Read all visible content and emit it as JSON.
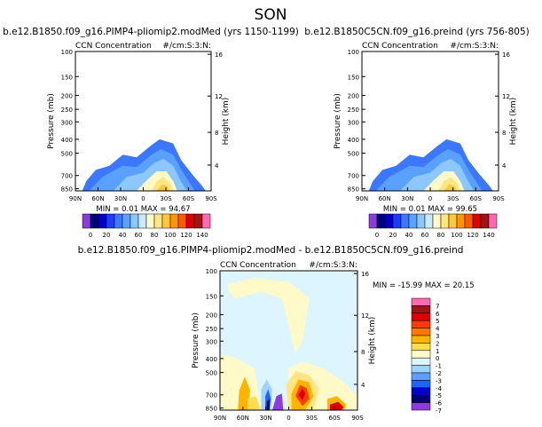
{
  "page_title": "SON",
  "chart_data": [
    {
      "type": "heatmap",
      "title": "b.e12.B1850.f09_g16.PIMP4-pliomip2.modMed (yrs 1150-1199)",
      "subtitle_left": "CCN  Concentration",
      "subtitle_right": "#/cm:S:3:N:",
      "ylabel": "Pressure  (mb)",
      "ylabel_right": "Height  (km)",
      "xticks": [
        "90N",
        "60N",
        "30N",
        "0",
        "30S",
        "60S",
        "90S"
      ],
      "yticks": [
        "100",
        "150",
        "200",
        "250",
        "300",
        "400",
        "500",
        "700",
        "850"
      ],
      "yticks_right": [
        "16",
        "12",
        "8",
        "4"
      ],
      "stats": "MIN =    0.01   MAX =    94.67",
      "min": 0.01,
      "max": 94.67,
      "colorbar_ticks": [
        "0",
        "20",
        "40",
        "60",
        "80",
        "100",
        "120",
        "140"
      ],
      "colorbar_colors": [
        "#8c3cdc",
        "#000078",
        "#0000c8",
        "#1e3cff",
        "#3c78ff",
        "#5aa0ff",
        "#8cc8ff",
        "#c8eaff",
        "#fffac8",
        "#ffe682",
        "#ffc83c",
        "#ff9600",
        "#ff5a00",
        "#dc0000",
        "#a01414",
        "#ff69b4"
      ]
    },
    {
      "type": "heatmap",
      "title": "b.e12.B1850C5CN.f09_g16.preind (yrs 756-805)",
      "subtitle_left": "CCN  Concentration",
      "subtitle_right": "#/cm:S:3:N:",
      "ylabel": "Pressure  (mb)",
      "ylabel_right": "Height  (km)",
      "xticks": [
        "90N",
        "60N",
        "30N",
        "0",
        "30S",
        "60S",
        "90S"
      ],
      "yticks": [
        "100",
        "150",
        "200",
        "250",
        "300",
        "400",
        "500",
        "700",
        "850"
      ],
      "yticks_right": [
        "16",
        "12",
        "8",
        "4"
      ],
      "stats": "MIN =    0.01   MAX =    99.65",
      "min": 0.01,
      "max": 99.65,
      "colorbar_ticks": [
        "0",
        "20",
        "40",
        "60",
        "80",
        "100",
        "120",
        "140"
      ],
      "colorbar_colors": [
        "#8c3cdc",
        "#000078",
        "#0000c8",
        "#1e3cff",
        "#3c78ff",
        "#5aa0ff",
        "#8cc8ff",
        "#c8eaff",
        "#fffac8",
        "#ffe682",
        "#ffc83c",
        "#ff9600",
        "#ff5a00",
        "#dc0000",
        "#a01414",
        "#ff69b4"
      ]
    },
    {
      "type": "heatmap",
      "title": "b.e12.B1850.f09_g16.PIMP4-pliomip2.modMed - b.e12.B1850C5CN.f09_g16.preind",
      "subtitle_left": "CCN  Concentration",
      "subtitle_right": "#/cm:S:3:N:",
      "ylabel": "Pressure  (mb)",
      "ylabel_right": "Height  (km)",
      "xticks": [
        "90N",
        "60N",
        "30N",
        "0",
        "30S",
        "60S",
        "90S"
      ],
      "yticks": [
        "100",
        "150",
        "200",
        "250",
        "300",
        "400",
        "500",
        "700",
        "850"
      ],
      "yticks_right": [
        "16",
        "12",
        "8",
        "4"
      ],
      "stats": "MIN =  -15.99   MAX =   20.15",
      "min": -15.99,
      "max": 20.15,
      "colorbar_ticks": [
        "7",
        "6",
        "5",
        "4",
        "3",
        "2",
        "1",
        "0",
        "-1",
        "-2",
        "-3",
        "-4",
        "-5",
        "-6",
        "-7"
      ],
      "colorbar_colors": [
        "#ff69b4",
        "#a01414",
        "#dc0000",
        "#ff3c00",
        "#ff7800",
        "#ffb400",
        "#ffdc50",
        "#fffac8",
        "#dcf5ff",
        "#a0d2ff",
        "#5aa0ff",
        "#1e64ff",
        "#0000c8",
        "#000078",
        "#8c3cdc"
      ]
    }
  ]
}
